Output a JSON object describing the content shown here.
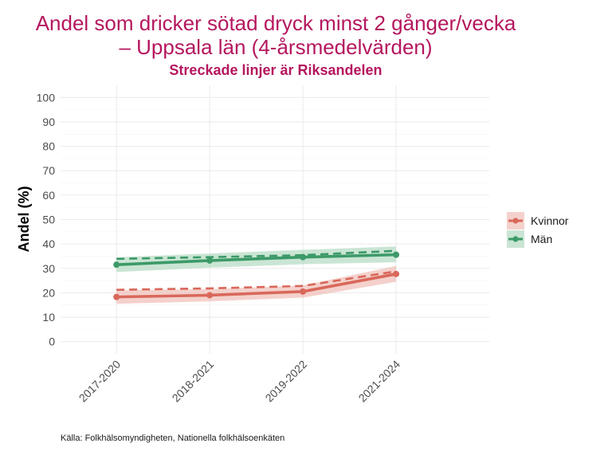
{
  "chart_data": {
    "type": "line",
    "title_lines": [
      "Andel som dricker sötad dryck minst 2 gånger/vecka",
      "– Uppsala län (4-årsmedelvärden)"
    ],
    "subtitle": "Streckade linjer är Riksandelen",
    "xlabel": "",
    "ylabel": "Andel (%)",
    "ylim": [
      -5,
      105
    ],
    "yticks": [
      0,
      10,
      20,
      30,
      40,
      50,
      60,
      70,
      80,
      90,
      100
    ],
    "categories": [
      "2017-2020",
      "2018-2021",
      "2019-2022",
      "2021-2024"
    ],
    "grid": true,
    "legend_position": "right",
    "series": [
      {
        "name": "Kvinnor",
        "color": "#d9685b",
        "band_color": "#f0c2bb",
        "values": [
          18.3,
          19.0,
          20.5,
          27.7
        ],
        "lower": [
          15.5,
          16.5,
          18.0,
          24.5
        ],
        "upper": [
          21.0,
          21.5,
          23.0,
          31.0
        ],
        "national": [
          21.2,
          21.8,
          22.8,
          28.8
        ]
      },
      {
        "name": "Män",
        "color": "#3c9a68",
        "band_color": "#b8dcc6",
        "values": [
          31.5,
          33.2,
          34.6,
          35.6
        ],
        "lower": [
          28.5,
          30.3,
          31.7,
          32.5
        ],
        "upper": [
          34.5,
          36.1,
          37.6,
          39.0
        ],
        "national": [
          33.9,
          34.6,
          35.4,
          37.2
        ]
      }
    ],
    "caption": "Källa: Folkhälsomyndigheten, Nationella folkhälsoenkäten"
  }
}
